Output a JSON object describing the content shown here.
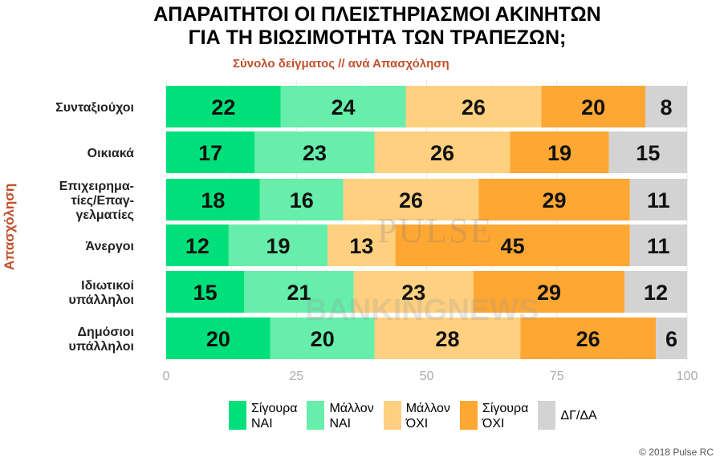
{
  "title_line1": "ΑΠΑΡΑΙΤΗΤΟΙ ΟΙ ΠΛΕΙΣΤΗΡΙΑΣΜΟΙ ΑΚΙΝΗΤΩΝ",
  "title_line2": "ΓΙΑ ΤΗ ΒΙΩΣΙΜΟΤΗΤΑ ΤΩΝ ΤΡΑΠΕΖΩΝ;",
  "subtitle": "Σύνολο δείγματος // ανά Απασχόληση",
  "footer": "© 2018 Pulse RC",
  "watermark_pulse": "PULSE",
  "watermark_banking": "BANKINGNEWS",
  "chart_data": {
    "type": "bar",
    "orientation": "horizontal",
    "stacked": true,
    "title": "ΑΠΑΡΑΙΤΗΤΟΙ ΟΙ ΠΛΕΙΣΤΗΡΙΑΣΜΟΙ ΑΚΙΝΗΤΩΝ ΓΙΑ ΤΗ ΒΙΩΣΙΜΟΤΗΤΑ ΤΩΝ ΤΡΑΠΕΖΩΝ;",
    "ylabel": "Απασχόληση",
    "xlabel": "",
    "xlim": [
      0,
      100
    ],
    "xticks": [
      0,
      25,
      50,
      75,
      100
    ],
    "categories": [
      "Συνταξιούχοι",
      "Οικιακά",
      "Επιχειρημα-\nτίες/Επαγ-\nγελματίες",
      "Άνεργοι",
      "Ιδιωτικοί\nυπάλληλοι",
      "Δημόσιοι\nυπάλληλοι"
    ],
    "series": [
      {
        "name": "Σίγουρα ΝΑΙ",
        "color": "#00e07a",
        "values": [
          22,
          17,
          18,
          12,
          15,
          20
        ]
      },
      {
        "name": "Μάλλον ΝΑΙ",
        "color": "#66eeaa",
        "values": [
          24,
          23,
          16,
          19,
          21,
          20
        ]
      },
      {
        "name": "Μάλλον ΌΧΙ",
        "color": "#ffd080",
        "values": [
          26,
          26,
          26,
          13,
          23,
          28
        ]
      },
      {
        "name": "Σίγουρα ΌΧΙ",
        "color": "#ffa733",
        "values": [
          20,
          19,
          29,
          45,
          29,
          26
        ]
      },
      {
        "name": "ΔΓ/ΔΑ",
        "color": "#d3d3d3",
        "values": [
          8,
          15,
          11,
          11,
          12,
          6
        ]
      }
    ],
    "grid": true
  },
  "legend": [
    {
      "label": "Σίγουρα\nΝΑΙ",
      "color": "#00e07a"
    },
    {
      "label": "Μάλλον\nΝΑΙ",
      "color": "#66eeaa"
    },
    {
      "label": "Μάλλον\nΌΧΙ",
      "color": "#ffd080"
    },
    {
      "label": "Σίγουρα\nΌΧΙ",
      "color": "#ffa733"
    },
    {
      "label": "ΔΓ/ΔΑ",
      "color": "#d3d3d3"
    }
  ]
}
